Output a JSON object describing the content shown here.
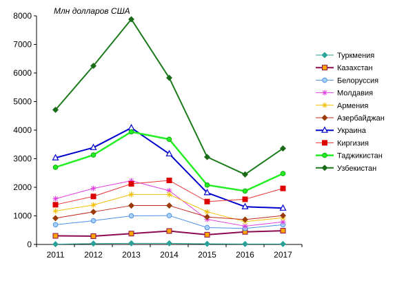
{
  "chart_data": {
    "type": "line",
    "title": "Млн долларов США",
    "xlabel": "",
    "ylabel": "",
    "x": [
      "2011",
      "2012",
      "2013",
      "2014",
      "2015",
      "2016",
      "2017"
    ],
    "ylim": [
      0,
      8000
    ],
    "yticks": [
      "0",
      "1000",
      "2000",
      "3000",
      "4000",
      "5000",
      "6000",
      "7000",
      "8000"
    ],
    "grid": false,
    "legend_position": "right",
    "series": [
      {
        "name": "Туркмения",
        "color": "#2aa198",
        "marker": "diamond",
        "markerFill": "#2aa198",
        "markerStroke": "#2aa198",
        "width": 1,
        "values": [
          10,
          30,
          40,
          40,
          20,
          15,
          15
        ]
      },
      {
        "name": "Казахстан",
        "color": "#8b0a50",
        "marker": "square",
        "markerFill": "#ffa500",
        "markerStroke": "#8b0a50",
        "width": 2,
        "values": [
          300,
          290,
          380,
          470,
          340,
          440,
          480
        ]
      },
      {
        "name": "Белоруссия",
        "color": "#4a90e2",
        "marker": "circle",
        "markerFill": "#a8d0f8",
        "markerStroke": "#4a90e2",
        "width": 1,
        "values": [
          690,
          830,
          1000,
          1010,
          590,
          560,
          690
        ]
      },
      {
        "name": "Молдавия",
        "color": "#e040e0",
        "marker": "star",
        "markerFill": "#e040e0",
        "markerStroke": "#e040e0",
        "width": 1,
        "values": [
          1600,
          1960,
          2230,
          1880,
          880,
          640,
          790
        ]
      },
      {
        "name": "Армения",
        "color": "#f0c000",
        "marker": "star",
        "markerFill": "#f0c000",
        "markerStroke": "#f0c000",
        "width": 1,
        "values": [
          1170,
          1380,
          1750,
          1750,
          1140,
          800,
          930
        ]
      },
      {
        "name": "Азербайджан",
        "color": "#c0281e",
        "marker": "diamond",
        "markerFill": "#9a3c0a",
        "markerStroke": "#9a3c0a",
        "width": 1,
        "values": [
          920,
          1140,
          1360,
          1360,
          960,
          870,
          1010
        ]
      },
      {
        "name": "Украина",
        "color": "#0000cc",
        "marker": "triangle",
        "markerFill": "#ffffff",
        "markerStroke": "#0000cc",
        "width": 2,
        "values": [
          3030,
          3390,
          4080,
          3170,
          1810,
          1320,
          1270
        ]
      },
      {
        "name": "Киргизия",
        "color": "#e83030",
        "marker": "square",
        "markerFill": "#dd0000",
        "markerStroke": "#dd0000",
        "width": 1,
        "values": [
          1390,
          1680,
          2120,
          2240,
          1500,
          1580,
          1960
        ]
      },
      {
        "name": "Таджикистан",
        "color": "#22ee22",
        "marker": "circle",
        "markerFill": "#22ee22",
        "markerStroke": "#11aa11",
        "width": 2.5,
        "values": [
          2700,
          3130,
          3940,
          3680,
          2080,
          1870,
          2480
        ]
      },
      {
        "name": "Узбекистан",
        "color": "#1a7a1a",
        "marker": "diamond",
        "markerFill": "#1a6a1a",
        "markerStroke": "#1a6a1a",
        "width": 2,
        "values": [
          4710,
          6250,
          7880,
          5830,
          3060,
          2450,
          3360
        ]
      }
    ]
  }
}
